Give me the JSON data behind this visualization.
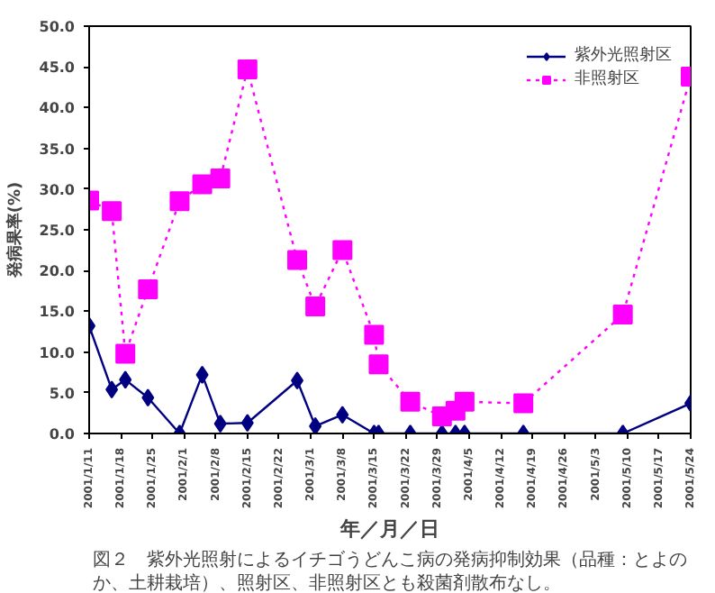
{
  "chart_data": {
    "type": "line",
    "ylabel": "発病果率(%)",
    "xlabel": "年／月／日",
    "annotations": [
      "図２　紫外光照射によるイチゴうどんこ病の発病抑制効果（品種：とよのか、土耕栽培）、照射区、非照射区とも殺菌剤散布なし。"
    ],
    "xlim": [
      "2001-01-11",
      "2001-05-24"
    ],
    "xticks": [
      {
        "value": "2001-01-11",
        "label": "2001/1/11"
      },
      {
        "value": "2001-01-18",
        "label": "2001/1/18"
      },
      {
        "value": "2001-01-25",
        "label": "2001/1/25"
      },
      {
        "value": "2001-02-01",
        "label": "2001/2/1"
      },
      {
        "value": "2001-02-08",
        "label": "2001/2/8"
      },
      {
        "value": "2001-02-15",
        "label": "2001/2/15"
      },
      {
        "value": "2001-02-22",
        "label": "2001/2/22"
      },
      {
        "value": "2001-03-01",
        "label": "2001/3/1"
      },
      {
        "value": "2001-03-08",
        "label": "2001/3/8"
      },
      {
        "value": "2001-03-15",
        "label": "2001/3/15"
      },
      {
        "value": "2001-03-22",
        "label": "2001/3/22"
      },
      {
        "value": "2001-03-29",
        "label": "2001/3/29"
      },
      {
        "value": "2001-04-05",
        "label": "2001/4/5"
      },
      {
        "value": "2001-04-12",
        "label": "2001/4/12"
      },
      {
        "value": "2001-04-19",
        "label": "2001/4/19"
      },
      {
        "value": "2001-04-26",
        "label": "2001/4/26"
      },
      {
        "value": "2001-05-03",
        "label": "2001/5/3"
      },
      {
        "value": "2001-05-10",
        "label": "2001/5/10"
      },
      {
        "value": "2001-05-17",
        "label": "2001/5/17"
      },
      {
        "value": "2001-05-24",
        "label": "2001/5/24"
      }
    ],
    "ylim": [
      0,
      50
    ],
    "yticks": [
      {
        "value": 0,
        "label": "0.0"
      },
      {
        "value": 5,
        "label": "5.0"
      },
      {
        "value": 10,
        "label": "10.0"
      },
      {
        "value": 15,
        "label": "15.0"
      },
      {
        "value": 20,
        "label": "20.0"
      },
      {
        "value": 25,
        "label": "25.0"
      },
      {
        "value": 30,
        "label": "30.0"
      },
      {
        "value": 35,
        "label": "35.0"
      },
      {
        "value": 40,
        "label": "40.0"
      },
      {
        "value": 45,
        "label": "45.0"
      },
      {
        "value": 50,
        "label": "50.0"
      }
    ],
    "grid": false,
    "legend": "top right",
    "series": [
      {
        "name": "紫外光照射区",
        "color": "#000080",
        "marker": "diamond",
        "line_style": "solid",
        "x": [
          "2001-01-11",
          "2001-01-16",
          "2001-01-19",
          "2001-01-24",
          "2001-01-31",
          "2001-02-05",
          "2001-02-09",
          "2001-02-15",
          "2001-02-26",
          "2001-03-02",
          "2001-03-08",
          "2001-03-15",
          "2001-03-16",
          "2001-03-23",
          "2001-03-30",
          "2001-04-02",
          "2001-04-04",
          "2001-04-17",
          "2001-05-09",
          "2001-05-24"
        ],
        "values": [
          13.2,
          5.4,
          6.6,
          4.4,
          0,
          7.2,
          1.2,
          1.3,
          6.5,
          0.9,
          2.3,
          0,
          0,
          0,
          0,
          0,
          0,
          0,
          0,
          3.7
        ]
      },
      {
        "name": "非照射区",
        "color": "#ff00ff",
        "marker": "square",
        "line_style": "dotted",
        "x": [
          "2001-01-11",
          "2001-01-16",
          "2001-01-19",
          "2001-01-24",
          "2001-01-31",
          "2001-02-05",
          "2001-02-09",
          "2001-02-15",
          "2001-02-26",
          "2001-03-02",
          "2001-03-08",
          "2001-03-15",
          "2001-03-16",
          "2001-03-23",
          "2001-03-30",
          "2001-04-02",
          "2001-04-04",
          "2001-04-17",
          "2001-05-09",
          "2001-05-24"
        ],
        "values": [
          28.6,
          27.3,
          9.8,
          17.7,
          28.5,
          30.6,
          31.3,
          44.7,
          21.3,
          15.6,
          22.5,
          12.1,
          8.5,
          3.9,
          2.1,
          2.8,
          3.9,
          3.7,
          14.6,
          43.8
        ]
      }
    ]
  }
}
